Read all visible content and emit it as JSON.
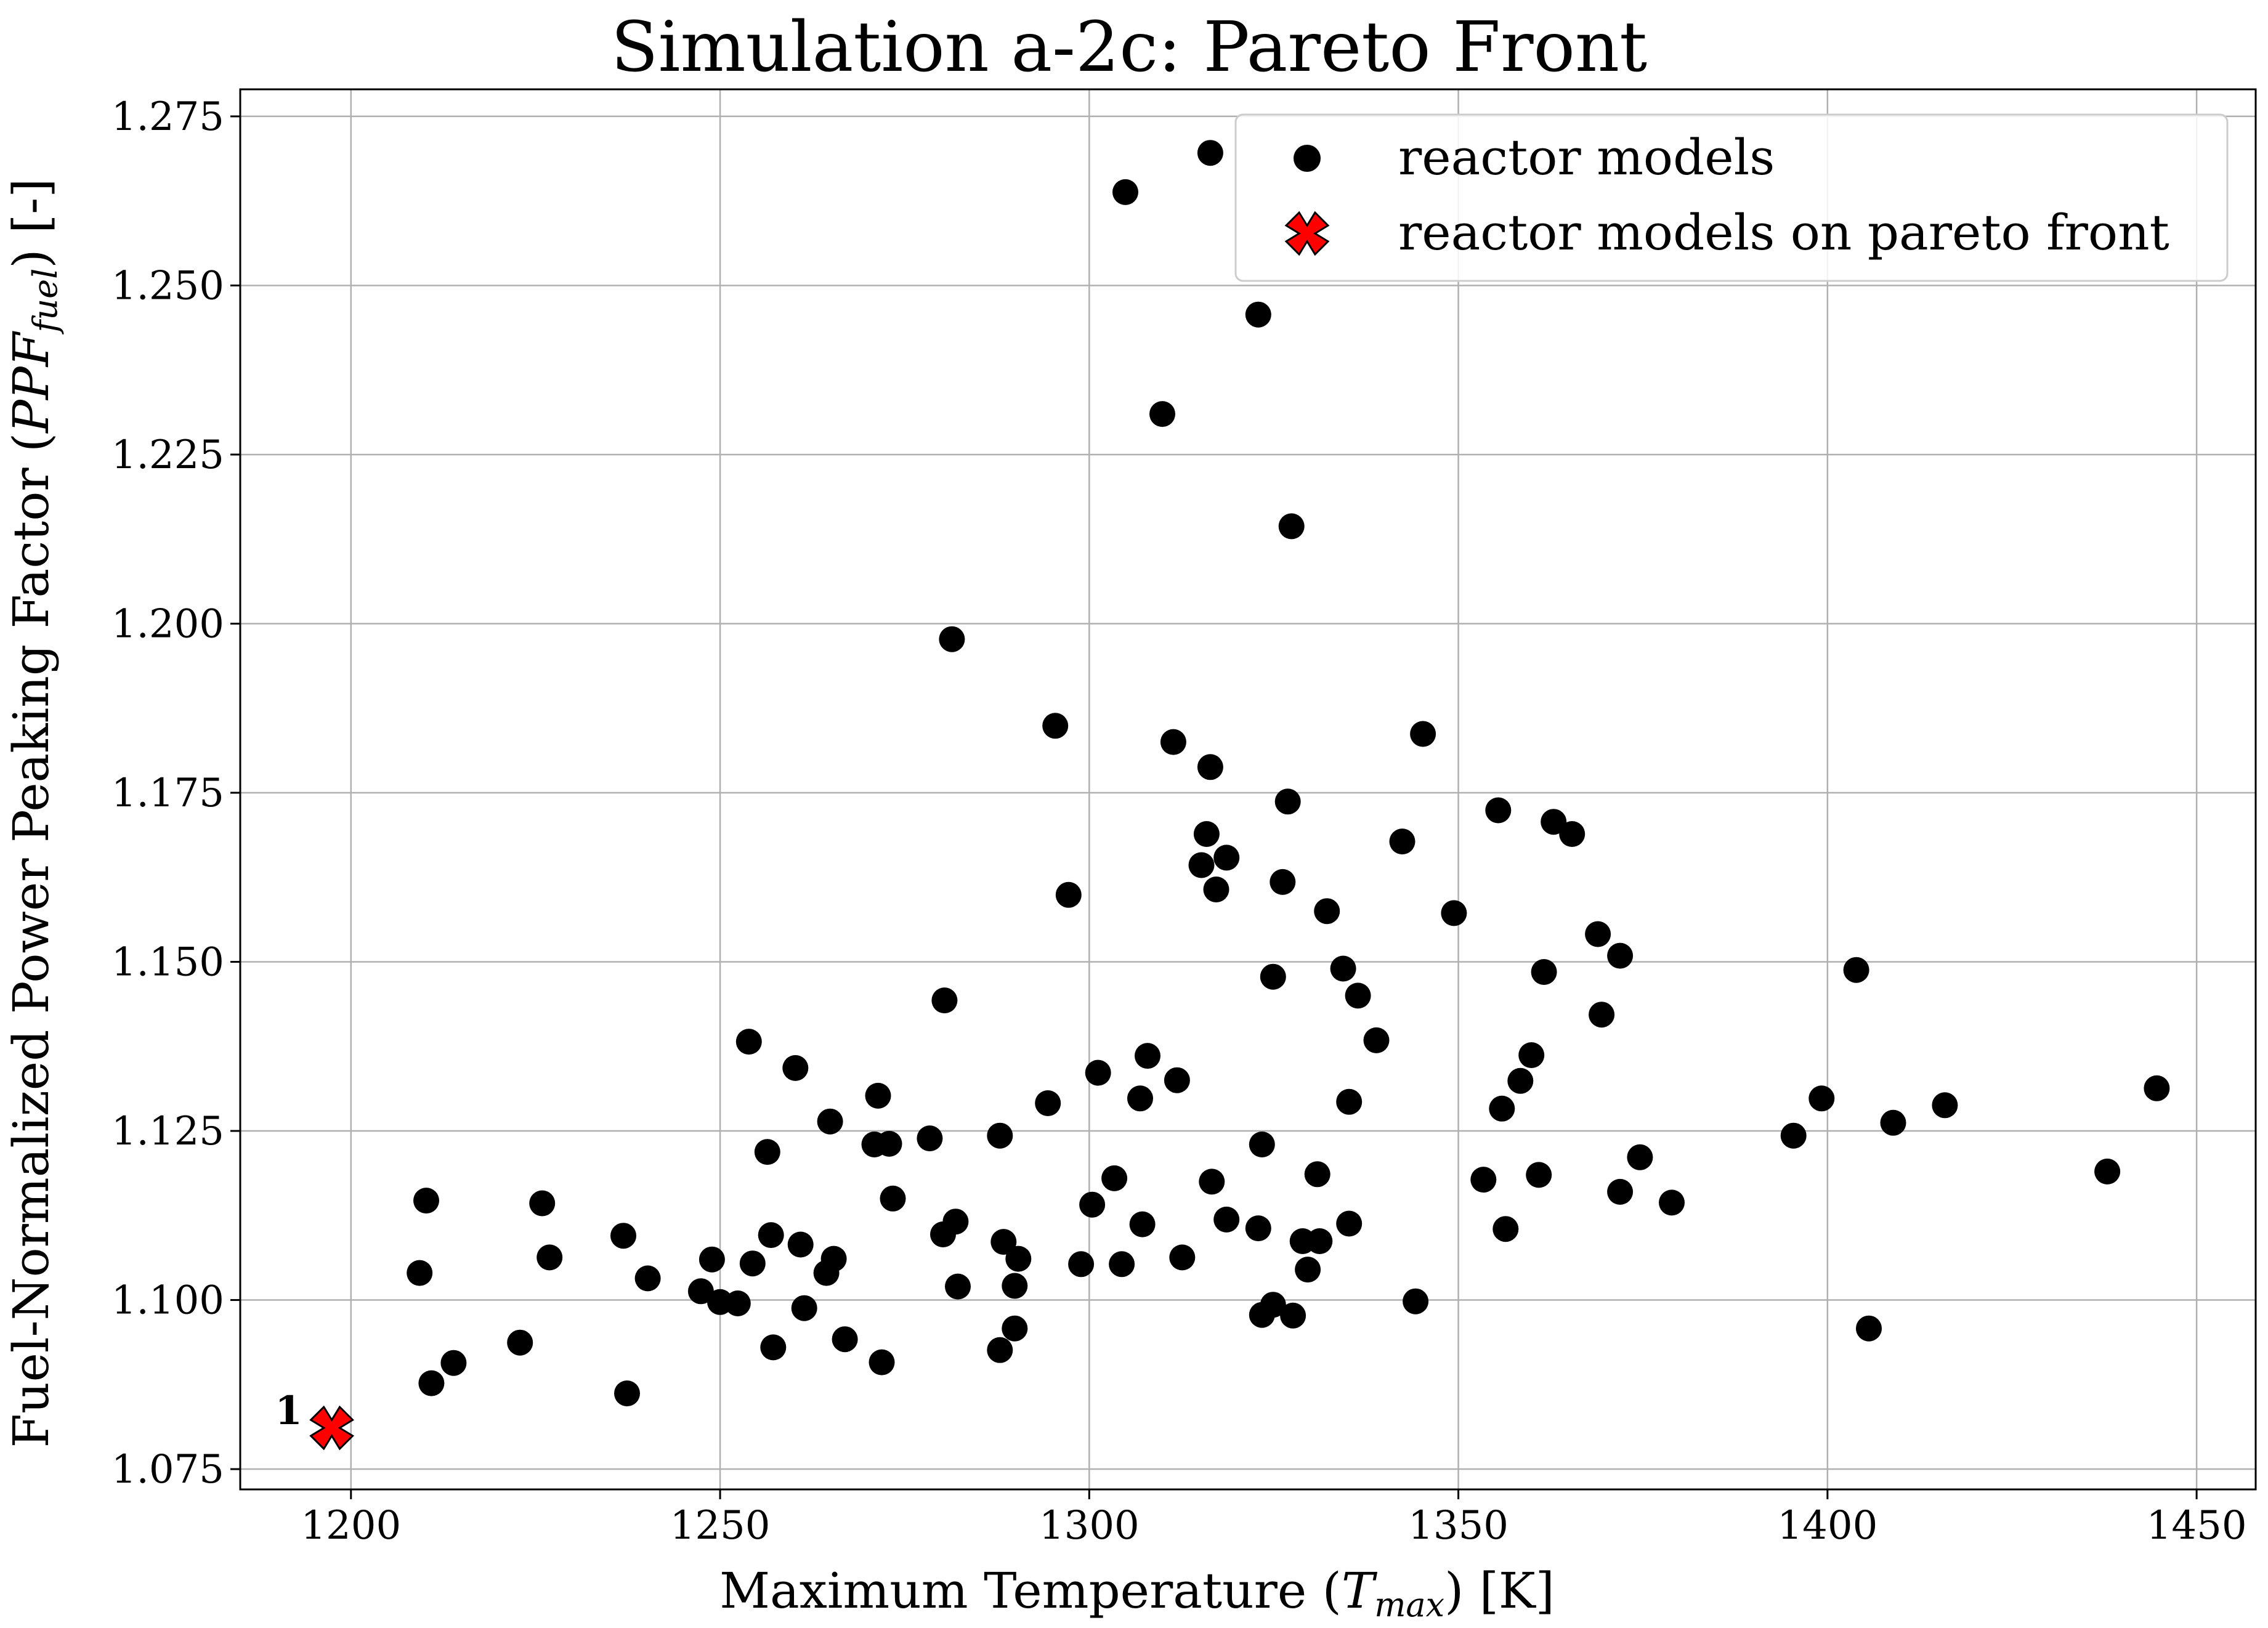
{
  "chart_data": {
    "type": "scatter",
    "title": "Simulation a-2c: Pareto Front",
    "xlabel": "Maximum Temperature (T_max) [K]",
    "ylabel": "Fuel-Normalized Power Peaking Factor (PPF_fuel) [-]",
    "xlabel_parts": {
      "pre": "Maximum Temperature (",
      "sym": "T",
      "sub": "max",
      "post": ") [K]"
    },
    "ylabel_parts": {
      "pre": "Fuel-Normalized Power Peaking Factor (",
      "sym": "PPF",
      "sub": "fuel",
      "post": ") [-]"
    },
    "xlim": [
      1185,
      1458
    ],
    "ylim": [
      1.072,
      1.279
    ],
    "xticks": [
      1200,
      1250,
      1300,
      1350,
      1400,
      1450
    ],
    "yticks": [
      1.075,
      1.1,
      1.125,
      1.15,
      1.175,
      1.2,
      1.225,
      1.25,
      1.275
    ],
    "xtick_labels": [
      "1200",
      "1250",
      "1300",
      "1350",
      "1400",
      "1450"
    ],
    "ytick_labels": [
      "1.075",
      "1.100",
      "1.125",
      "1.150",
      "1.175",
      "1.200",
      "1.225",
      "1.250",
      "1.275"
    ],
    "grid": true,
    "legend_position": "top-right",
    "colors": {
      "models": "#000000",
      "pareto_fill": "#ff0000",
      "pareto_edge": "#000000"
    },
    "series": [
      {
        "name": "reactor models",
        "marker": "circle",
        "points": [
          [
            1209.3,
            1.104
          ],
          [
            1210.2,
            1.1147
          ],
          [
            1210.9,
            1.0877
          ],
          [
            1213.9,
            1.0907
          ],
          [
            1222.9,
            1.0937
          ],
          [
            1225.9,
            1.1143
          ],
          [
            1226.9,
            1.1063
          ],
          [
            1236.9,
            1.1095
          ],
          [
            1237.4,
            1.0862
          ],
          [
            1240.2,
            1.1032
          ],
          [
            1247.4,
            1.1013
          ],
          [
            1248.9,
            1.106
          ],
          [
            1250.0,
            1.0997
          ],
          [
            1252.4,
            1.0995
          ],
          [
            1253.9,
            1.1382
          ],
          [
            1254.4,
            1.1054
          ],
          [
            1256.4,
            1.1219
          ],
          [
            1256.9,
            1.1096
          ],
          [
            1257.2,
            1.093
          ],
          [
            1260.2,
            1.1343
          ],
          [
            1260.9,
            1.1082
          ],
          [
            1261.4,
            1.0988
          ],
          [
            1264.4,
            1.104
          ],
          [
            1264.9,
            1.1264
          ],
          [
            1265.4,
            1.1061
          ],
          [
            1266.9,
            1.0942
          ],
          [
            1270.9,
            1.123
          ],
          [
            1271.4,
            1.1302
          ],
          [
            1271.9,
            1.0908
          ],
          [
            1272.9,
            1.1231
          ],
          [
            1273.4,
            1.115
          ],
          [
            1278.4,
            1.1239
          ],
          [
            1280.4,
            1.1443
          ],
          [
            1280.2,
            1.1097
          ],
          [
            1281.4,
            1.1977
          ],
          [
            1281.9,
            1.1116
          ],
          [
            1282.2,
            1.102
          ],
          [
            1287.9,
            1.1243
          ],
          [
            1287.9,
            1.0926
          ],
          [
            1288.4,
            1.1086
          ],
          [
            1289.9,
            1.0958
          ],
          [
            1289.9,
            1.1021
          ],
          [
            1290.4,
            1.1061
          ],
          [
            1294.4,
            1.1291
          ],
          [
            1295.4,
            1.1849
          ],
          [
            1297.2,
            1.1599
          ],
          [
            1298.9,
            1.1053
          ],
          [
            1300.4,
            1.1141
          ],
          [
            1301.2,
            1.1336
          ],
          [
            1303.4,
            1.118
          ],
          [
            1304.4,
            1.1053
          ],
          [
            1304.9,
            1.2638
          ],
          [
            1306.9,
            1.1298
          ],
          [
            1307.2,
            1.1112
          ],
          [
            1307.9,
            1.1361
          ],
          [
            1309.9,
            1.231
          ],
          [
            1311.4,
            1.1825
          ],
          [
            1311.9,
            1.1325
          ],
          [
            1312.6,
            1.1063
          ],
          [
            1315.2,
            1.1643
          ],
          [
            1315.9,
            1.1689
          ],
          [
            1316.4,
            1.1788
          ],
          [
            1316.4,
            1.2696
          ],
          [
            1316.6,
            1.1175
          ],
          [
            1317.2,
            1.1607
          ],
          [
            1318.6,
            1.1654
          ],
          [
            1318.6,
            1.1119
          ],
          [
            1322.9,
            1.2457
          ],
          [
            1322.9,
            1.1106
          ],
          [
            1323.4,
            1.123
          ],
          [
            1323.4,
            1.0978
          ],
          [
            1324.9,
            1.0993
          ],
          [
            1324.9,
            1.1478
          ],
          [
            1326.2,
            1.1618
          ],
          [
            1326.9,
            1.1737
          ],
          [
            1327.4,
            1.2144
          ],
          [
            1327.6,
            1.0977
          ],
          [
            1328.9,
            1.1087
          ],
          [
            1329.6,
            1.1045
          ],
          [
            1330.9,
            1.1186
          ],
          [
            1331.2,
            1.1087
          ],
          [
            1332.2,
            1.1575
          ],
          [
            1334.4,
            1.149
          ],
          [
            1335.2,
            1.1293
          ],
          [
            1335.2,
            1.1113
          ],
          [
            1336.4,
            1.145
          ],
          [
            1338.9,
            1.1384
          ],
          [
            1342.4,
            1.1678
          ],
          [
            1344.2,
            1.0998
          ],
          [
            1345.2,
            1.1837
          ],
          [
            1349.4,
            1.1572
          ],
          [
            1353.4,
            1.1178
          ],
          [
            1355.4,
            1.1724
          ],
          [
            1355.9,
            1.1283
          ],
          [
            1356.4,
            1.1105
          ],
          [
            1358.4,
            1.1324
          ],
          [
            1359.9,
            1.1362
          ],
          [
            1360.9,
            1.1185
          ],
          [
            1361.6,
            1.1485
          ],
          [
            1362.9,
            1.1707
          ],
          [
            1365.4,
            1.1689
          ],
          [
            1368.9,
            1.1541
          ],
          [
            1369.4,
            1.1422
          ],
          [
            1371.9,
            1.1509
          ],
          [
            1371.9,
            1.116
          ],
          [
            1374.6,
            1.1211
          ],
          [
            1378.9,
            1.1144
          ],
          [
            1395.4,
            1.1243
          ],
          [
            1399.2,
            1.1298
          ],
          [
            1403.9,
            1.1488
          ],
          [
            1405.6,
            1.0958
          ],
          [
            1408.9,
            1.1262
          ],
          [
            1415.9,
            1.1288
          ],
          [
            1437.9,
            1.119
          ],
          [
            1444.6,
            1.1313
          ]
        ]
      },
      {
        "name": "reactor models on pareto front",
        "marker": "x-filled",
        "points": [
          [
            1197.4,
            1.0811
          ]
        ],
        "labels": [
          "1"
        ]
      }
    ]
  }
}
